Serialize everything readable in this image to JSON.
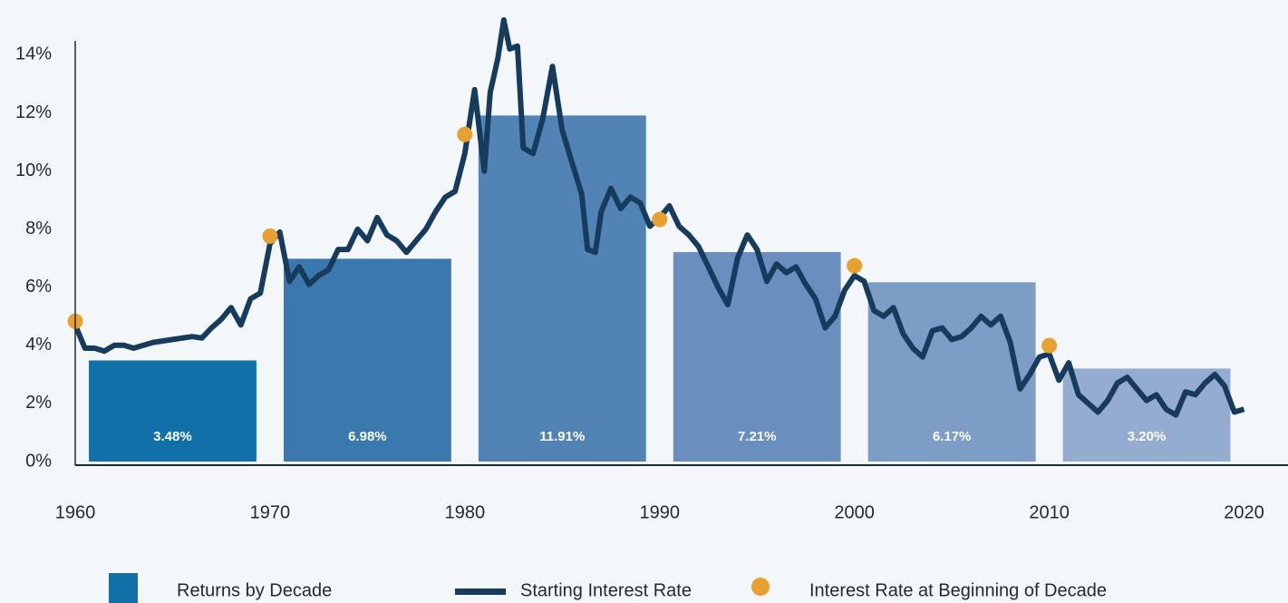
{
  "chart_data": {
    "type": "bar",
    "xlim": [
      1960,
      2021
    ],
    "xticks": [
      1960,
      1970,
      1980,
      1990,
      2000,
      2010,
      2020
    ],
    "ylim": [
      0,
      14.7
    ],
    "yticks": [
      {
        "value": 0,
        "label": "0%"
      },
      {
        "value": 2,
        "label": "2%"
      },
      {
        "value": 4,
        "label": "4%"
      },
      {
        "value": 6,
        "label": "6%"
      },
      {
        "value": 8,
        "label": "8%"
      },
      {
        "value": 10,
        "label": "10%"
      },
      {
        "value": 12,
        "label": "12%"
      },
      {
        "value": 14,
        "label": "14%"
      }
    ],
    "series": [
      {
        "name": "Returns by Decade",
        "type": "bar",
        "color": "#1170a8",
        "x": [
          1960,
          1970,
          1980,
          1990,
          2000,
          2010
        ],
        "values": [
          3.48,
          6.98,
          11.91,
          7.21,
          6.17,
          3.2
        ],
        "value_labels": [
          "3.48%",
          "6.98%",
          "11.91%",
          "7.21%",
          "6.17%",
          "3.20%"
        ],
        "colors": [
          "#1170a8",
          "#3a78ae",
          "#5283b5",
          "#6a8fbe",
          "#7d9cc6",
          "#93acd0"
        ]
      },
      {
        "name": "Starting Interest Rate",
        "type": "line",
        "color": "#163b5c",
        "x": [
          1960,
          1960.5,
          1961,
          1961.5,
          1962,
          1962.5,
          1963,
          1963.5,
          1964,
          1965,
          1966,
          1966.5,
          1967,
          1967.5,
          1968,
          1968.5,
          1969,
          1969.5,
          1970,
          1970.5,
          1971,
          1971.5,
          1972,
          1972.5,
          1973,
          1973.5,
          1974,
          1974.5,
          1975,
          1975.5,
          1976,
          1976.5,
          1977,
          1977.5,
          1978,
          1978.5,
          1979,
          1979.5,
          1980,
          1980.5,
          1981,
          1981.3,
          1981.7,
          1982,
          1982.3,
          1982.7,
          1983,
          1983.5,
          1984,
          1984.5,
          1985,
          1985.5,
          1986,
          1986.3,
          1986.7,
          1987,
          1987.5,
          1988,
          1988.5,
          1989,
          1989.5,
          1990,
          1990.5,
          1991,
          1991.5,
          1992,
          1992.5,
          1993,
          1993.5,
          1994,
          1994.5,
          1995,
          1995.5,
          1996,
          1996.5,
          1997,
          1997.5,
          1998,
          1998.5,
          1999,
          1999.5,
          2000,
          2000.5,
          2001,
          2001.5,
          2002,
          2002.5,
          2003,
          2003.5,
          2004,
          2004.5,
          2005,
          2005.5,
          2006,
          2006.5,
          2007,
          2007.5,
          2008,
          2008.5,
          2009,
          2009.5,
          2010,
          2010.5,
          2011,
          2011.5,
          2012,
          2012.5,
          2013,
          2013.5,
          2014,
          2014.5,
          2015,
          2015.5,
          2016,
          2016.5,
          2017,
          2017.5,
          2018,
          2018.5,
          2019,
          2019.5,
          2020
        ],
        "values": [
          4.7,
          3.9,
          3.9,
          3.8,
          4.0,
          4.0,
          3.9,
          4.0,
          4.1,
          4.2,
          4.3,
          4.25,
          4.6,
          4.9,
          5.3,
          4.7,
          5.6,
          5.8,
          7.5,
          7.9,
          6.2,
          6.7,
          6.1,
          6.4,
          6.6,
          7.3,
          7.3,
          8.0,
          7.6,
          8.4,
          7.8,
          7.6,
          7.2,
          7.6,
          8.0,
          8.6,
          9.1,
          9.3,
          10.6,
          12.8,
          10.0,
          12.7,
          13.9,
          15.2,
          14.2,
          14.3,
          10.8,
          10.6,
          11.8,
          13.6,
          11.4,
          10.3,
          9.2,
          7.3,
          7.2,
          8.6,
          9.4,
          8.7,
          9.1,
          8.9,
          8.1,
          8.4,
          8.8,
          8.1,
          7.8,
          7.4,
          6.7,
          6.0,
          5.4,
          7.0,
          7.8,
          7.3,
          6.2,
          6.8,
          6.5,
          6.7,
          6.1,
          5.6,
          4.6,
          5.0,
          5.9,
          6.4,
          6.2,
          5.2,
          5.0,
          5.3,
          4.4,
          3.9,
          3.6,
          4.5,
          4.6,
          4.2,
          4.3,
          4.6,
          5.0,
          4.7,
          5.0,
          4.1,
          2.5,
          3.0,
          3.6,
          3.7,
          2.8,
          3.4,
          2.3,
          2.0,
          1.7,
          2.1,
          2.7,
          2.9,
          2.5,
          2.1,
          2.3,
          1.8,
          1.6,
          2.4,
          2.3,
          2.7,
          3.0,
          2.6,
          1.7,
          1.8
        ]
      },
      {
        "name": "Interest Rate at Beginning of Decade",
        "type": "scatter",
        "color": "#e8a030",
        "x": [
          1960,
          1970,
          1980,
          1990,
          2000,
          2010
        ],
        "values": [
          4.83,
          7.76,
          11.26,
          8.33,
          6.74,
          3.99
        ]
      }
    ]
  }
}
